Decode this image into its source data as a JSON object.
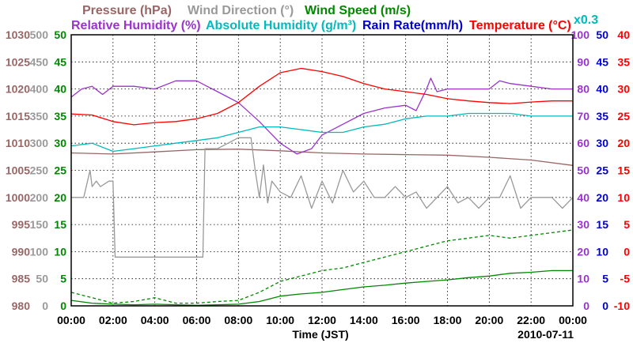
{
  "chart_data": {
    "type": "line",
    "date_label": "2010-07-11",
    "xlabel": "Time (JST)",
    "x_ticks": [
      "00:00",
      "02:00",
      "04:00",
      "06:00",
      "08:00",
      "10:00",
      "12:00",
      "14:00",
      "16:00",
      "18:00",
      "20:00",
      "22:00",
      "00:00"
    ],
    "xlim_hours": [
      0,
      24
    ],
    "grid": true,
    "axes": {
      "pressure": {
        "color": "#996666",
        "range": [
          980,
          1030
        ],
        "ticks": [
          "1030",
          "1025",
          "1020",
          "1015",
          "1010",
          "1005",
          "1000",
          "995",
          "990",
          "985",
          "980"
        ]
      },
      "wind_direction": {
        "color": "#999999",
        "range": [
          0,
          500
        ],
        "ticks": [
          "500",
          "450",
          "400",
          "350",
          "300",
          "250",
          "200",
          "150",
          "100",
          "50",
          "0"
        ]
      },
      "wind_speed": {
        "color": "#008800",
        "range": [
          0,
          50
        ],
        "ticks": [
          "50",
          "45",
          "40",
          "35",
          "30",
          "25",
          "20",
          "15",
          "10",
          "5",
          "0"
        ]
      },
      "relative_humidity": {
        "color": "#9933cc",
        "range": [
          0,
          100
        ],
        "ticks": [
          "100",
          "90",
          "80",
          "70",
          "60",
          "50",
          "40",
          "30",
          "20",
          "10",
          "0"
        ]
      },
      "rain_rate": {
        "color": "#0000cc",
        "range": [
          0,
          50
        ],
        "ticks": [
          "50",
          "45",
          "40",
          "35",
          "30",
          "25",
          "20",
          "15",
          "10",
          "5",
          "0"
        ]
      },
      "temperature": {
        "color": "#ff0000",
        "range": [
          -10,
          40
        ],
        "ticks": [
          "40",
          "35",
          "30",
          "25",
          "20",
          "15",
          "10",
          "5",
          "0",
          "-5",
          "-10"
        ]
      }
    },
    "legend": [
      {
        "label": "Pressure (hPa)",
        "color": "#996666"
      },
      {
        "label": "Wind Direction (°)",
        "color": "#999999"
      },
      {
        "label": "Wind Speed (m/s)",
        "color": "#008800"
      },
      {
        "label": "Relative Humidity (%)",
        "color": "#9933cc"
      },
      {
        "label": "Absolute Humidity (g/m³)",
        "color": "#00bbbb"
      },
      {
        "label": "Rain Rate(mm/h)",
        "color": "#0000cc"
      },
      {
        "label": "Temperature (°C)",
        "color": "#ff0000"
      },
      {
        "label": "x0.3",
        "color": "#00bbbb"
      }
    ],
    "series": [
      {
        "name": "Pressure (hPa)",
        "axis": "pressure",
        "color": "#996666",
        "x": [
          0,
          2,
          4,
          6,
          8,
          10,
          12,
          14,
          16,
          18,
          20,
          22,
          24
        ],
        "y": [
          1008.2,
          1008.0,
          1008.4,
          1008.8,
          1008.9,
          1008.6,
          1008.2,
          1008.0,
          1007.9,
          1007.8,
          1007.4,
          1006.9,
          1005.9
        ]
      },
      {
        "name": "Relative Humidity (%)",
        "axis": "relative_humidity",
        "color": "#9933cc",
        "x": [
          0,
          0.5,
          1,
          1.5,
          2,
          3,
          4,
          5,
          6,
          6.5,
          7,
          8,
          9,
          10,
          10.8,
          11.5,
          12,
          13,
          14,
          15,
          16,
          16.5,
          17,
          17.2,
          17.5,
          18,
          19,
          20,
          20.5,
          21,
          22,
          23,
          24
        ],
        "y": [
          77,
          80,
          81,
          78,
          81,
          81,
          80,
          83,
          83,
          81,
          79,
          75,
          68,
          60,
          56,
          58,
          63,
          67,
          71,
          73,
          74,
          72,
          80,
          84,
          79,
          80,
          80,
          80,
          83,
          82,
          81,
          80,
          80
        ]
      },
      {
        "name": "Absolute Humidity (g/m³)",
        "axis": "relative_humidity",
        "color": "#00bbbb",
        "note": "x0.3",
        "x": [
          0,
          1,
          2,
          3,
          4,
          5,
          6,
          7,
          8,
          9,
          10,
          11,
          12,
          13,
          14,
          15,
          16,
          17,
          18,
          19,
          20,
          21,
          22,
          23,
          24
        ],
        "y": [
          59,
          60,
          57,
          58,
          59,
          60,
          61,
          62,
          64,
          66,
          66,
          65,
          64,
          64,
          66,
          67,
          69,
          70,
          70,
          71,
          71,
          71,
          70,
          70,
          70
        ]
      },
      {
        "name": "Temperature (°C)",
        "axis": "temperature",
        "color": "#ff0000",
        "x": [
          0,
          1,
          2,
          3,
          4,
          5,
          6,
          7,
          8,
          9,
          10,
          11,
          12,
          13,
          14,
          15,
          16,
          17,
          18,
          19,
          20,
          21,
          22,
          23,
          24
        ],
        "y": [
          25.4,
          25.2,
          24,
          23.4,
          23.8,
          24,
          24.5,
          25.5,
          27.5,
          30.5,
          33,
          33.8,
          33.2,
          32.3,
          31,
          30,
          29.5,
          29,
          28.2,
          27.8,
          27.5,
          27.3,
          27.6,
          27.8,
          27.8
        ]
      },
      {
        "name": "Wind Direction (°)",
        "axis": "wind_direction",
        "color": "#999999",
        "x": [
          0,
          0.6,
          0.9,
          1,
          1.2,
          1.4,
          1.8,
          2.0,
          2.1,
          3,
          4,
          5,
          6,
          6.3,
          6.4,
          7,
          8,
          8.6,
          8.8,
          9,
          9.2,
          9.4,
          9.6,
          10,
          10.5,
          11,
          11.5,
          12,
          12.5,
          13,
          13.5,
          14,
          14.5,
          15,
          15.5,
          16,
          16.5,
          17,
          17.5,
          18,
          18.5,
          19,
          19.5,
          20,
          20.5,
          21,
          21.5,
          22,
          22.5,
          23,
          23.5,
          24
        ],
        "y": [
          200,
          200,
          250,
          220,
          230,
          220,
          230,
          230,
          90,
          90,
          90,
          90,
          90,
          90,
          290,
          290,
          310,
          310,
          250,
          200,
          260,
          190,
          230,
          210,
          200,
          240,
          180,
          230,
          190,
          250,
          210,
          230,
          200,
          200,
          220,
          200,
          210,
          180,
          200,
          220,
          190,
          200,
          180,
          200,
          200,
          240,
          180,
          200,
          200,
          200,
          180,
          200
        ]
      },
      {
        "name": "Wind Speed (m/s)",
        "axis": "wind_speed",
        "color": "#008800",
        "x": [
          0,
          1,
          2,
          3,
          4,
          5,
          6,
          7,
          8,
          9,
          10,
          11,
          12,
          13,
          14,
          15,
          16,
          17,
          18,
          19,
          20,
          21,
          22,
          23,
          24
        ],
        "y": [
          1,
          0.5,
          0.3,
          0.2,
          0.3,
          0.2,
          0.1,
          0.2,
          0.3,
          0.8,
          1.8,
          2.2,
          2.5,
          3,
          3.5,
          3.8,
          4.2,
          4.5,
          4.8,
          5.2,
          5.5,
          6,
          6.2,
          6.5,
          6.5
        ]
      },
      {
        "name": "Wind Speed gust (m/s)",
        "axis": "wind_speed",
        "color": "#008800",
        "dashed": true,
        "x": [
          0,
          1,
          2,
          3,
          4,
          5,
          6,
          7,
          8,
          9,
          10,
          11,
          12,
          13,
          14,
          15,
          16,
          17,
          18,
          19,
          20,
          21,
          22,
          23,
          24
        ],
        "y": [
          2.5,
          1.5,
          0.5,
          0.8,
          1.5,
          0.5,
          0.5,
          0.8,
          1,
          2.5,
          4.5,
          5.5,
          6.5,
          7,
          8,
          9,
          10,
          11,
          12,
          12.5,
          13,
          12.5,
          13,
          13.5,
          14
        ]
      }
    ]
  }
}
